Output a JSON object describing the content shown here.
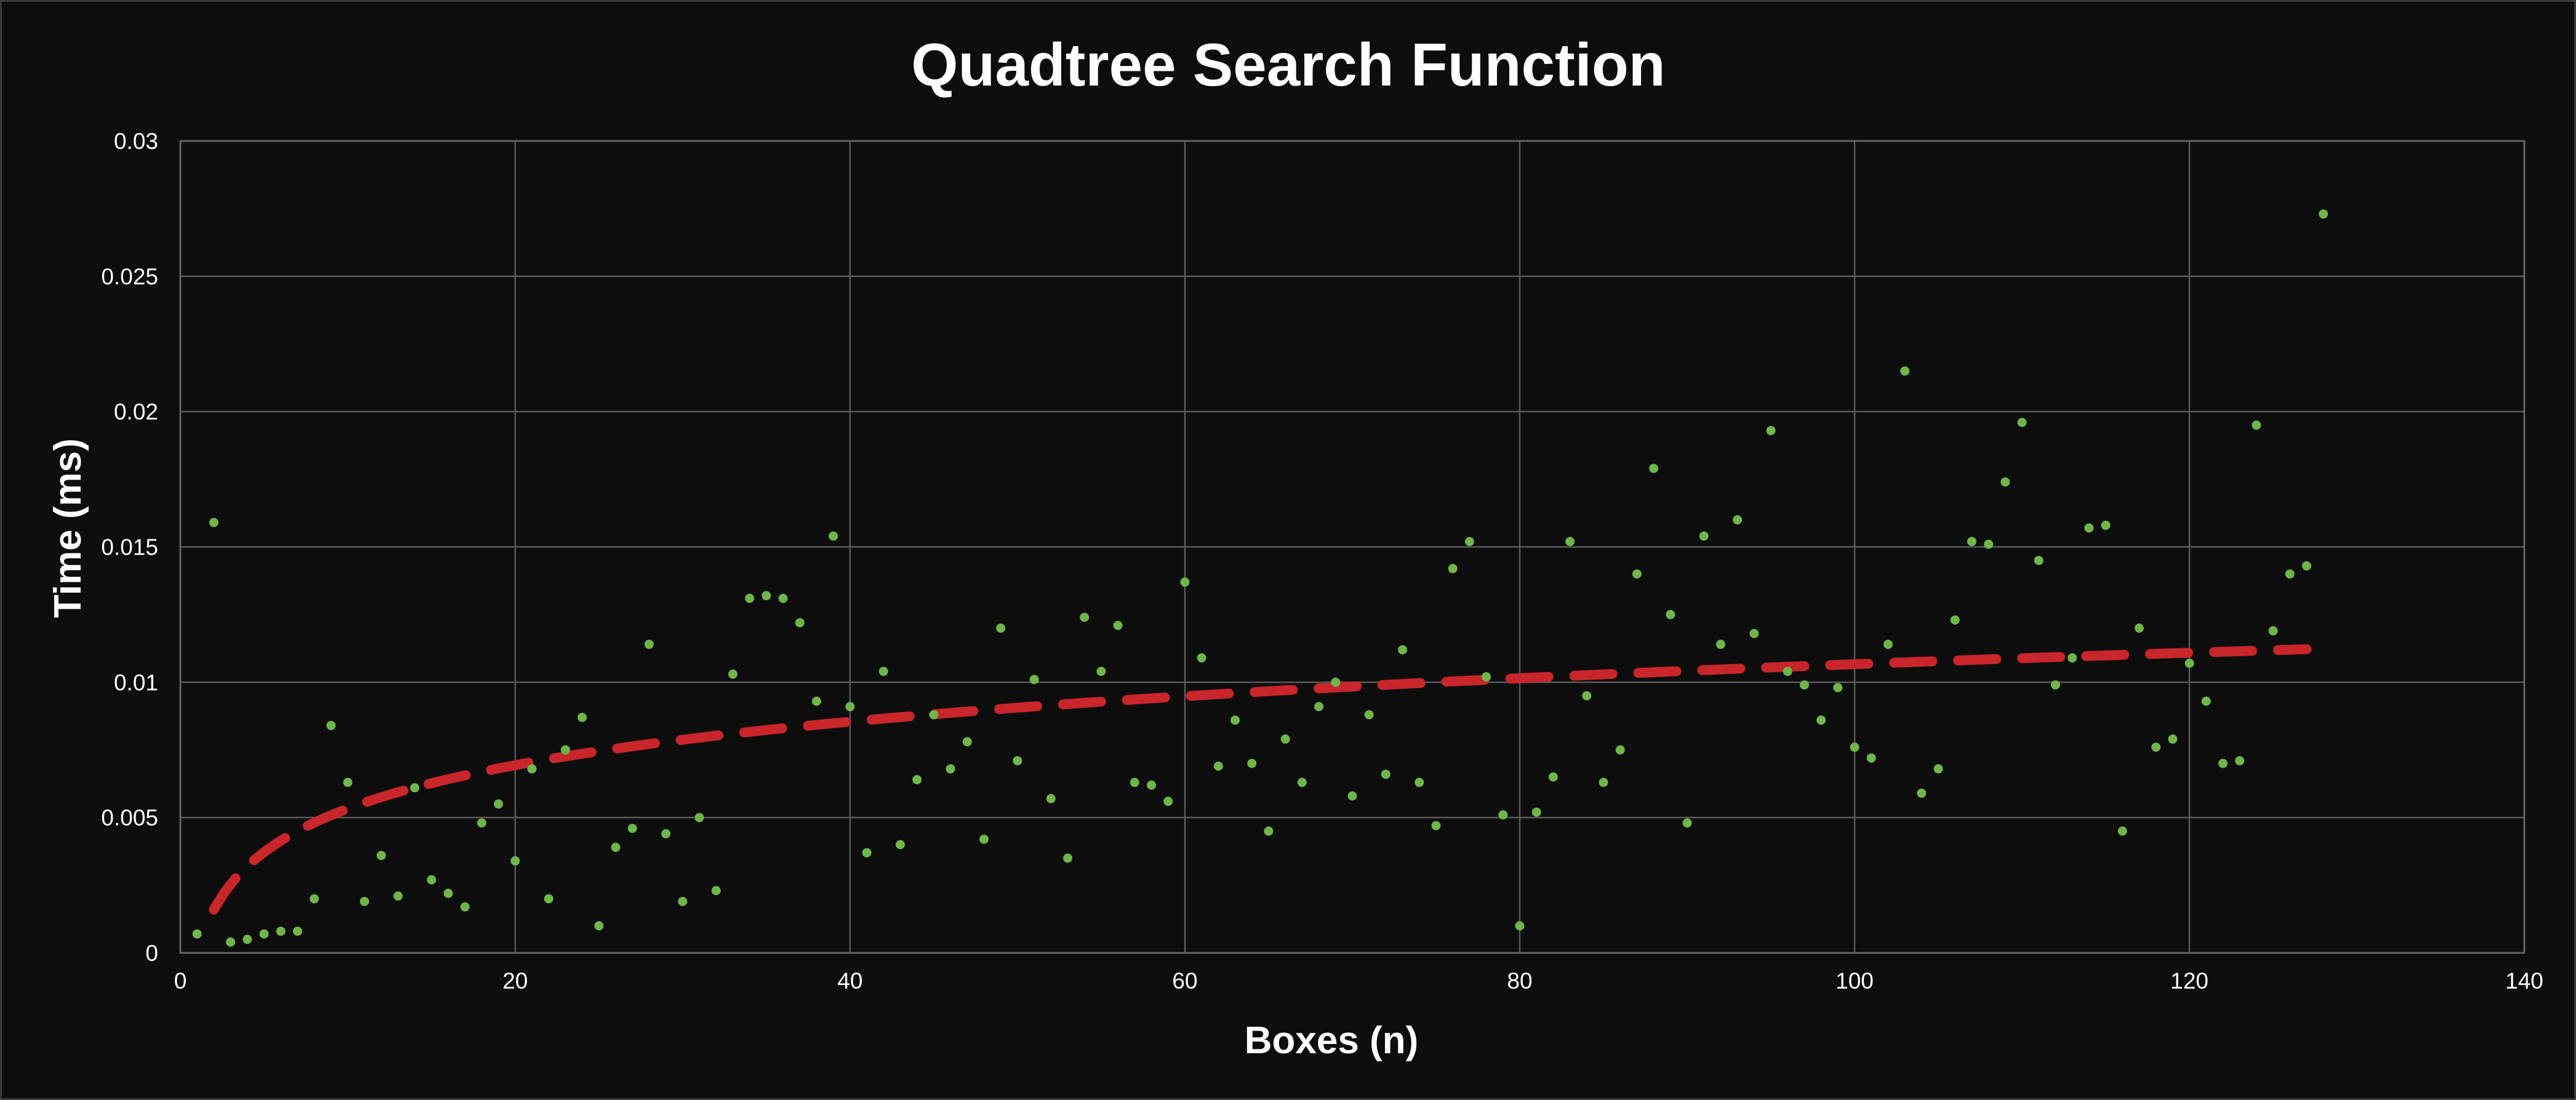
{
  "chart_data": {
    "type": "scatter",
    "title": "Quadtree Search Function",
    "xlabel": "Boxes (n)",
    "ylabel": "Time (ms)",
    "xlim": [
      0,
      140
    ],
    "ylim": [
      0,
      0.03
    ],
    "x_ticks": [
      "0",
      "20",
      "40",
      "60",
      "80",
      "100",
      "120",
      "140"
    ],
    "y_ticks": [
      "0",
      "0.005",
      "0.01",
      "0.015",
      "0.02",
      "0.025",
      "0.03"
    ],
    "grid": true,
    "legend": "none",
    "colors": {
      "points": "#6fb64a",
      "trendline": "#c8262b",
      "background": "#0d0d0d",
      "grid": "#5a5a5a"
    },
    "series": [
      {
        "kind": "points",
        "points": [
          [
            1,
            0.0007
          ],
          [
            2,
            0.0159
          ],
          [
            3,
            0.0004
          ],
          [
            4,
            0.0005
          ],
          [
            5,
            0.0007
          ],
          [
            6,
            0.0008
          ],
          [
            7,
            0.0008
          ],
          [
            8,
            0.002
          ],
          [
            9,
            0.0084
          ],
          [
            10,
            0.0063
          ],
          [
            11,
            0.0019
          ],
          [
            12,
            0.0036
          ],
          [
            13,
            0.0021
          ],
          [
            14,
            0.0061
          ],
          [
            15,
            0.0027
          ],
          [
            16,
            0.0022
          ],
          [
            17,
            0.0017
          ],
          [
            18,
            0.0048
          ],
          [
            19,
            0.0055
          ],
          [
            20,
            0.0034
          ],
          [
            21,
            0.0068
          ],
          [
            22,
            0.002
          ],
          [
            23,
            0.0075
          ],
          [
            24,
            0.0087
          ],
          [
            25,
            0.001
          ],
          [
            26,
            0.0039
          ],
          [
            27,
            0.0046
          ],
          [
            28,
            0.0114
          ],
          [
            29,
            0.0044
          ],
          [
            30,
            0.0019
          ],
          [
            31,
            0.005
          ],
          [
            32,
            0.0023
          ],
          [
            33,
            0.0103
          ],
          [
            34,
            0.0131
          ],
          [
            35,
            0.0132
          ],
          [
            36,
            0.0131
          ],
          [
            37,
            0.0122
          ],
          [
            38,
            0.0093
          ],
          [
            39,
            0.0154
          ],
          [
            40,
            0.0091
          ],
          [
            41,
            0.0037
          ],
          [
            42,
            0.0104
          ],
          [
            43,
            0.004
          ],
          [
            44,
            0.0064
          ],
          [
            45,
            0.0088
          ],
          [
            46,
            0.0068
          ],
          [
            47,
            0.0078
          ],
          [
            48,
            0.0042
          ],
          [
            49,
            0.012
          ],
          [
            50,
            0.0071
          ],
          [
            51,
            0.0101
          ],
          [
            52,
            0.0057
          ],
          [
            53,
            0.0035
          ],
          [
            54,
            0.0124
          ],
          [
            55,
            0.0104
          ],
          [
            56,
            0.0121
          ],
          [
            57,
            0.0063
          ],
          [
            58,
            0.0062
          ],
          [
            59,
            0.0056
          ],
          [
            60,
            0.0137
          ],
          [
            61,
            0.0109
          ],
          [
            62,
            0.0069
          ],
          [
            63,
            0.0086
          ],
          [
            64,
            0.007
          ],
          [
            65,
            0.0045
          ],
          [
            66,
            0.0079
          ],
          [
            67,
            0.0063
          ],
          [
            68,
            0.0091
          ],
          [
            69,
            0.01
          ],
          [
            70,
            0.0058
          ],
          [
            71,
            0.0088
          ],
          [
            72,
            0.0066
          ],
          [
            73,
            0.0112
          ],
          [
            74,
            0.0063
          ],
          [
            75,
            0.0047
          ],
          [
            76,
            0.0142
          ],
          [
            77,
            0.0152
          ],
          [
            78,
            0.0102
          ],
          [
            79,
            0.0051
          ],
          [
            80,
            0.001
          ],
          [
            81,
            0.0052
          ],
          [
            82,
            0.0065
          ],
          [
            83,
            0.0152
          ],
          [
            84,
            0.0095
          ],
          [
            85,
            0.0063
          ],
          [
            86,
            0.0075
          ],
          [
            87,
            0.014
          ],
          [
            88,
            0.0179
          ],
          [
            89,
            0.0125
          ],
          [
            90,
            0.0048
          ],
          [
            91,
            0.0154
          ],
          [
            92,
            0.0114
          ],
          [
            93,
            0.016
          ],
          [
            94,
            0.0118
          ],
          [
            95,
            0.0193
          ],
          [
            96,
            0.0104
          ],
          [
            97,
            0.0099
          ],
          [
            98,
            0.0086
          ],
          [
            99,
            0.0098
          ],
          [
            100,
            0.0076
          ],
          [
            101,
            0.0072
          ],
          [
            102,
            0.0114
          ],
          [
            103,
            0.0215
          ],
          [
            104,
            0.0059
          ],
          [
            105,
            0.0068
          ],
          [
            106,
            0.0123
          ],
          [
            107,
            0.0152
          ],
          [
            108,
            0.0151
          ],
          [
            109,
            0.0174
          ],
          [
            110,
            0.0196
          ],
          [
            111,
            0.0145
          ],
          [
            112,
            0.0099
          ],
          [
            113,
            0.0109
          ],
          [
            114,
            0.0157
          ],
          [
            115,
            0.0158
          ],
          [
            116,
            0.0045
          ],
          [
            117,
            0.012
          ],
          [
            118,
            0.0076
          ],
          [
            119,
            0.0079
          ],
          [
            120,
            0.0107
          ],
          [
            121,
            0.0093
          ],
          [
            122,
            0.007
          ],
          [
            123,
            0.0071
          ],
          [
            124,
            0.0195
          ],
          [
            125,
            0.0119
          ],
          [
            126,
            0.014
          ],
          [
            127,
            0.0143
          ],
          [
            128,
            0.0273
          ]
        ]
      },
      {
        "kind": "trendline",
        "style": "dashed",
        "trend_type": "logarithmic",
        "x_range": [
          2,
          127
        ],
        "coefficients": {
          "a": 0.002318,
          "b": -7.7e-06
        }
      }
    ]
  }
}
